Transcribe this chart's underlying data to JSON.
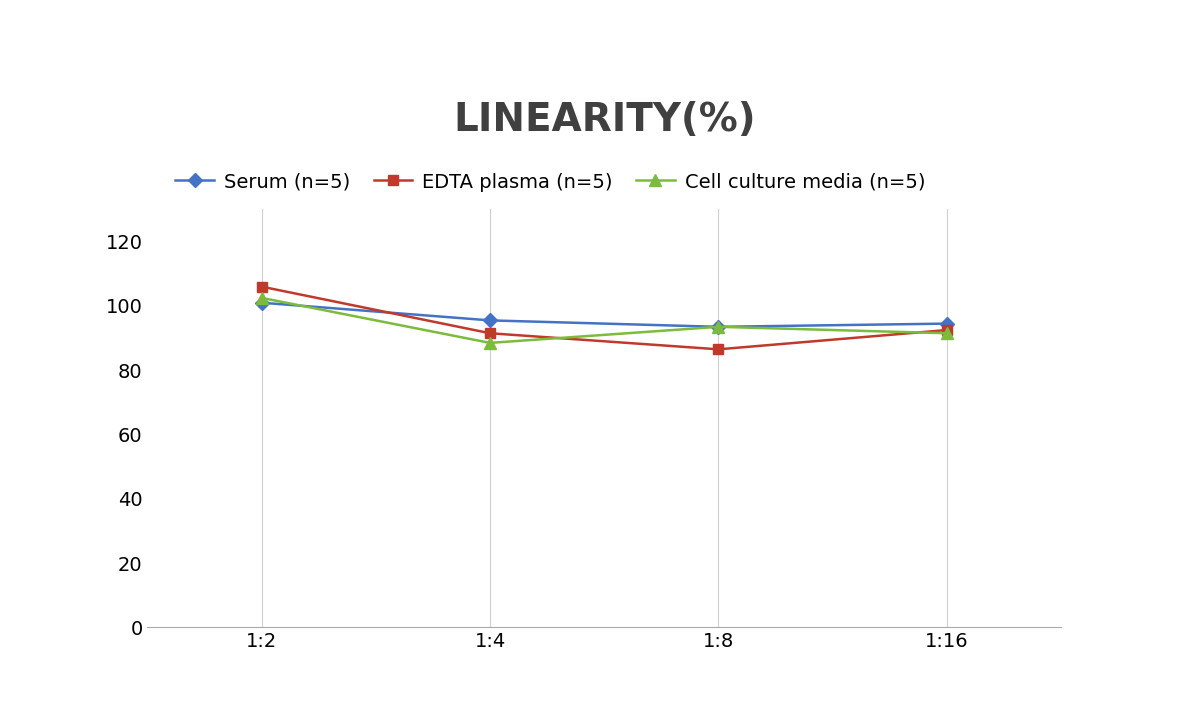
{
  "title": "LINEARITY(%)",
  "title_fontsize": 28,
  "title_fontweight": "bold",
  "title_color": "#404040",
  "x_labels": [
    "1:2",
    "1:4",
    "1:8",
    "1:16"
  ],
  "x_positions": [
    0,
    1,
    2,
    3
  ],
  "series": [
    {
      "name": "Serum (n=5)",
      "values": [
        101,
        95.5,
        93.5,
        94.5
      ],
      "color": "#4472C4",
      "marker": "D",
      "markersize": 7,
      "linewidth": 1.8
    },
    {
      "name": "EDTA plasma (n=5)",
      "values": [
        106,
        91.5,
        86.5,
        92.5
      ],
      "color": "#C0392B",
      "marker": "s",
      "markersize": 7,
      "linewidth": 1.8
    },
    {
      "name": "Cell culture media (n=5)",
      "values": [
        102.5,
        88.5,
        93.5,
        91.5
      ],
      "color": "#7CBB3C",
      "marker": "^",
      "markersize": 8,
      "linewidth": 1.8
    }
  ],
  "ylim": [
    0,
    130
  ],
  "yticks": [
    0,
    20,
    40,
    60,
    80,
    100,
    120
  ],
  "tick_fontsize": 14,
  "legend_fontsize": 14,
  "background_color": "#ffffff",
  "grid_color": "#d0d0d0",
  "grid_linewidth": 0.8
}
